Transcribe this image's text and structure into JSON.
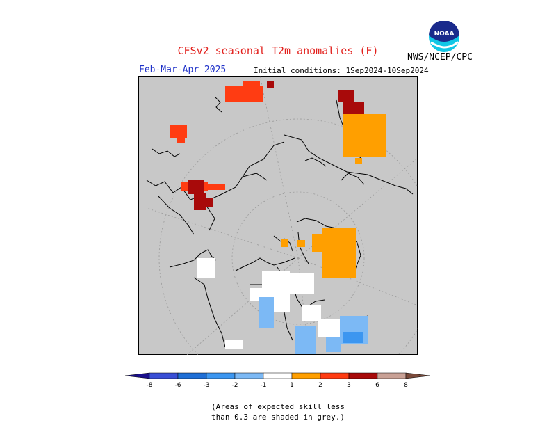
{
  "header": {
    "title": "CFSv2 seasonal T2m anomalies (F)",
    "org": "NWS/NCEP/CPC",
    "period": "Feb-Mar-Apr 2025",
    "initial_conditions": "Initial conditions: 1Sep2024-10Sep2024",
    "logo_text": "NOAA"
  },
  "colors": {
    "no_skill_grey": "#c8c8c8",
    "title_red": "#e2201c",
    "period_blue": "#1d30c8"
  },
  "legend": {
    "ticks": [
      "-8",
      "-6",
      "-3",
      "-2",
      "-1",
      "1",
      "2",
      "3",
      "6",
      "8"
    ],
    "bins": [
      {
        "color": "#1a0f8c"
      },
      {
        "color": "#3a4fd6"
      },
      {
        "color": "#1f6fd6"
      },
      {
        "color": "#3c96f0"
      },
      {
        "color": "#7cb9f5"
      },
      {
        "color": "#ffffff"
      },
      {
        "color": "#ff9f00"
      },
      {
        "color": "#ff3c12"
      },
      {
        "color": "#a80a0a"
      },
      {
        "color": "#c9a196"
      },
      {
        "color": "#7a4a3a"
      }
    ]
  },
  "footnote": {
    "line1": "(Areas of expected skill less",
    "line2": "than 0.3 are shaded in grey.)"
  }
}
